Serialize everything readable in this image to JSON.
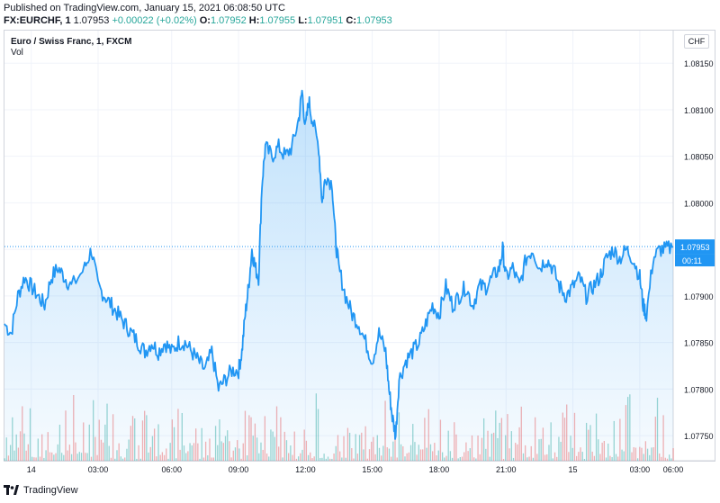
{
  "header": {
    "published": "Published on TradingView.com, January 15, 2021 06:08:50 UTC",
    "symbol": "FX:EURCHF, 1",
    "last": "1.07953",
    "change": "+0.00022 (+0.02%)",
    "o_label": "O:",
    "o_val": "1.07952",
    "h_label": "H:",
    "h_val": "1.07955",
    "l_label": "L:",
    "l_val": "1.07951",
    "c_label": "C:",
    "c_val": "1.07953"
  },
  "legend": {
    "title": "Euro / Swiss Franc, 1, FXCM",
    "vol": "Vol"
  },
  "currency_button": "CHF",
  "price_tag": "1.07953",
  "countdown_tag": "00:11",
  "brand": "TradingView",
  "colors": {
    "line": "#2196f3",
    "area": "#e3effd",
    "up": "#26a69a",
    "down": "#ef5350",
    "grid": "#f0f3fa",
    "tag": "#2196f3"
  },
  "chart_data": {
    "type": "area",
    "title": "Euro / Swiss Franc, 1, FXCM",
    "y_ticks": [
      1.0775,
      1.078,
      1.0785,
      1.079,
      1.0795,
      1.08,
      1.0805,
      1.081,
      1.0815
    ],
    "y_tick_labels": [
      "1.07750",
      "1.07800",
      "1.07850",
      "1.07900",
      "1.07950",
      "1.08000",
      "1.08050",
      "1.08100",
      "1.08150"
    ],
    "ylim": [
      1.07723,
      1.08185
    ],
    "x_ticks": [
      {
        "label": "14",
        "pos": 0.04
      },
      {
        "label": "03:00",
        "pos": 0.14
      },
      {
        "label": "06:00",
        "pos": 0.25
      },
      {
        "label": "09:00",
        "pos": 0.35
      },
      {
        "label": "12:00",
        "pos": 0.45
      },
      {
        "label": "15:00",
        "pos": 0.55
      },
      {
        "label": "18:00",
        "pos": 0.65
      },
      {
        "label": "21:00",
        "pos": 0.75
      },
      {
        "label": "15",
        "pos": 0.85
      },
      {
        "label": "03:00",
        "pos": 0.95
      },
      {
        "label": "06:00",
        "pos": 1.0
      }
    ],
    "series": [
      {
        "name": "EURCHF",
        "points": [
          [
            0.0,
            1.0787
          ],
          [
            0.01,
            1.0786
          ],
          [
            0.02,
            1.079
          ],
          [
            0.03,
            1.0792
          ],
          [
            0.04,
            1.0791
          ],
          [
            0.05,
            1.079
          ],
          [
            0.06,
            1.0789
          ],
          [
            0.07,
            1.0792
          ],
          [
            0.08,
            1.0793
          ],
          [
            0.09,
            1.0792
          ],
          [
            0.1,
            1.0791
          ],
          [
            0.12,
            1.0793
          ],
          [
            0.13,
            1.0795
          ],
          [
            0.14,
            1.0791
          ],
          [
            0.15,
            1.079
          ],
          [
            0.16,
            1.0789
          ],
          [
            0.17,
            1.0788
          ],
          [
            0.18,
            1.0787
          ],
          [
            0.19,
            1.0786
          ],
          [
            0.2,
            1.0785
          ],
          [
            0.21,
            1.0784
          ],
          [
            0.22,
            1.0785
          ],
          [
            0.23,
            1.0784
          ],
          [
            0.24,
            1.0785
          ],
          [
            0.25,
            1.0784
          ],
          [
            0.26,
            1.0785
          ],
          [
            0.27,
            1.0785
          ],
          [
            0.28,
            1.0784
          ],
          [
            0.29,
            1.0783
          ],
          [
            0.3,
            1.0782
          ],
          [
            0.31,
            1.0784
          ],
          [
            0.32,
            1.078
          ],
          [
            0.33,
            1.0781
          ],
          [
            0.34,
            1.0782
          ],
          [
            0.35,
            1.0782
          ],
          [
            0.355,
            1.0784
          ],
          [
            0.36,
            1.0788
          ],
          [
            0.365,
            1.0791
          ],
          [
            0.37,
            1.0795
          ],
          [
            0.375,
            1.0793
          ],
          [
            0.38,
            1.0792
          ],
          [
            0.385,
            1.0802
          ],
          [
            0.39,
            1.0806
          ],
          [
            0.4,
            1.0805
          ],
          [
            0.41,
            1.0806
          ],
          [
            0.42,
            1.0805
          ],
          [
            0.43,
            1.0806
          ],
          [
            0.44,
            1.0809
          ],
          [
            0.445,
            1.0812
          ],
          [
            0.45,
            1.0808
          ],
          [
            0.455,
            1.0811
          ],
          [
            0.46,
            1.0809
          ],
          [
            0.47,
            1.0806
          ],
          [
            0.475,
            1.08
          ],
          [
            0.48,
            1.0803
          ],
          [
            0.49,
            1.0802
          ],
          [
            0.495,
            1.0796
          ],
          [
            0.5,
            1.0793
          ],
          [
            0.51,
            1.079
          ],
          [
            0.52,
            1.0788
          ],
          [
            0.53,
            1.0787
          ],
          [
            0.54,
            1.0785
          ],
          [
            0.55,
            1.0783
          ],
          [
            0.56,
            1.0786
          ],
          [
            0.57,
            1.0784
          ],
          [
            0.575,
            1.078
          ],
          [
            0.58,
            1.0777
          ],
          [
            0.585,
            1.0775
          ],
          [
            0.59,
            1.0781
          ],
          [
            0.6,
            1.0783
          ],
          [
            0.61,
            1.0784
          ],
          [
            0.62,
            1.0785
          ],
          [
            0.63,
            1.0787
          ],
          [
            0.64,
            1.0789
          ],
          [
            0.65,
            1.0788
          ],
          [
            0.66,
            1.0791
          ],
          [
            0.67,
            1.0789
          ],
          [
            0.68,
            1.079
          ],
          [
            0.69,
            1.0791
          ],
          [
            0.7,
            1.0789
          ],
          [
            0.71,
            1.0791
          ],
          [
            0.72,
            1.0791
          ],
          [
            0.73,
            1.0792
          ],
          [
            0.74,
            1.0793
          ],
          [
            0.745,
            1.0795
          ],
          [
            0.75,
            1.0792
          ],
          [
            0.76,
            1.0793
          ],
          [
            0.77,
            1.0791
          ],
          [
            0.78,
            1.0794
          ],
          [
            0.79,
            1.0795
          ],
          [
            0.8,
            1.0793
          ],
          [
            0.81,
            1.0794
          ],
          [
            0.82,
            1.0793
          ],
          [
            0.83,
            1.0791
          ],
          [
            0.84,
            1.079
          ],
          [
            0.85,
            1.0791
          ],
          [
            0.86,
            1.0792
          ],
          [
            0.87,
            1.079
          ],
          [
            0.88,
            1.0791
          ],
          [
            0.89,
            1.0792
          ],
          [
            0.9,
            1.0794
          ],
          [
            0.91,
            1.0795
          ],
          [
            0.92,
            1.0794
          ],
          [
            0.93,
            1.0795
          ],
          [
            0.94,
            1.0794
          ],
          [
            0.95,
            1.0792
          ],
          [
            0.955,
            1.0789
          ],
          [
            0.96,
            1.0788
          ],
          [
            0.97,
            1.0794
          ],
          [
            0.98,
            1.0795
          ],
          [
            0.99,
            1.0795
          ],
          [
            1.0,
            1.07953
          ]
        ]
      }
    ],
    "volume": {
      "max_fraction": 0.17
    }
  }
}
